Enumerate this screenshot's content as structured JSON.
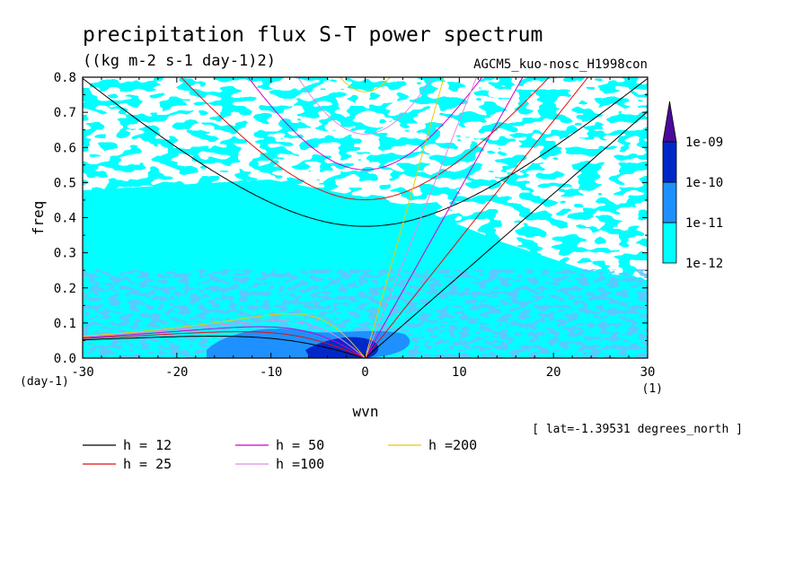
{
  "chart_data": {
    "type": "heatmap",
    "title": "precipitation flux S-T power spectrum",
    "units": "((kg m-2 s-1 day-1)2)",
    "experiment": "AGCM5_kuo-nosc_H1998con",
    "xlabel": "wvn",
    "ylabel": "freq",
    "x_unit": "(1)",
    "y_unit": "(day-1)",
    "latitude_note": "[ lat=-1.39531 degrees_north ]",
    "xlim": [
      -30,
      30
    ],
    "ylim": [
      0,
      0.8
    ],
    "x_ticks": [
      "-30",
      "-20",
      "-10",
      "0",
      "10",
      "20",
      "30"
    ],
    "y_ticks": [
      "0.0",
      "0.1",
      "0.2",
      "0.3",
      "0.4",
      "0.5",
      "0.6",
      "0.7",
      "0.8"
    ],
    "colorbar": {
      "levels": [
        "1e-12",
        "1e-11",
        "1e-10",
        "1e-09"
      ],
      "colors": [
        "#00ffff",
        "#1e90ff",
        "#0028c8",
        "#4b0a9b"
      ]
    },
    "legend": [
      {
        "label": "h = 12",
        "h": 12,
        "color": "#000000"
      },
      {
        "label": "h = 25",
        "h": 25,
        "color": "#e01010"
      },
      {
        "label": "h = 50",
        "h": 50,
        "color": "#d000c8"
      },
      {
        "label": "h =100",
        "h": 100,
        "color": "#e08ce0"
      },
      {
        "label": "h =200",
        "h": 200,
        "color": "#f0c800"
      }
    ]
  }
}
